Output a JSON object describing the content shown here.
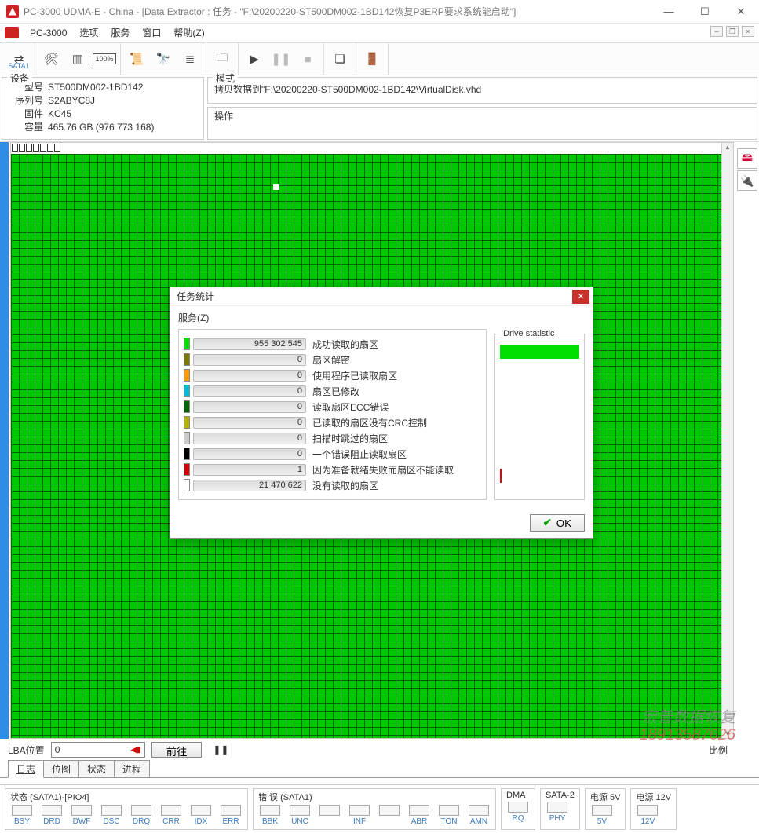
{
  "window": {
    "title": "PC-3000 UDMA-E - China - [Data Extractor : 任务 - \"F:\\20200220-ST500DM002-1BD142恢复P3ERP要求系统能启动\"]"
  },
  "menu": {
    "pc3000": "PC-3000",
    "options": "选项",
    "service": "服务",
    "windows": "窗口",
    "help": "帮助(Z)"
  },
  "toolbar": {
    "sata_label": "SATA1"
  },
  "device_panel": {
    "legend": "设备",
    "model_label": "型号",
    "model": "ST500DM002-1BD142",
    "serial_label": "序列号",
    "serial": "S2ABYC8J",
    "firmware_label": "固件",
    "firmware": "KC45",
    "capacity_label": "容量",
    "capacity": "465.76 GB (976 773 168)"
  },
  "mode_panel": {
    "legend": "模式",
    "text": "拷贝数据到\"F:\\20200220-ST500DM002-1BD142\\VirtualDisk.vhd"
  },
  "op_panel": {
    "legend": "操作"
  },
  "dialog": {
    "title": "任务统计",
    "menu": "服务(Z)",
    "drive_stat": "Drive statistic",
    "ok": "OK",
    "stats": [
      {
        "color": "#00e000",
        "value": "955 302 545",
        "label": "成功读取的扇区"
      },
      {
        "color": "#7a7a00",
        "value": "0",
        "label": "扇区解密"
      },
      {
        "color": "#ff9900",
        "value": "0",
        "label": "使用程序已读取扇区"
      },
      {
        "color": "#00bcd4",
        "value": "0",
        "label": "扇区已修改"
      },
      {
        "color": "#006400",
        "value": "0",
        "label": "读取扇区ECC错误"
      },
      {
        "color": "#b3b300",
        "value": "0",
        "label": "已读取的扇区没有CRC控制"
      },
      {
        "color": "#cccccc",
        "value": "0",
        "label": "扫描时跳过的扇区"
      },
      {
        "color": "#000000",
        "value": "0",
        "label": "一个错误阻止读取扇区"
      },
      {
        "color": "#d40000",
        "value": "1",
        "label": "因为准备就绪失败而扇区不能读取"
      },
      {
        "color": "#ffffff",
        "value": "21 470 622",
        "label": "没有读取的扇区"
      }
    ]
  },
  "lba": {
    "label": "LBA位置",
    "value": "0",
    "goto": "前往",
    "legend": "比例"
  },
  "tabs": {
    "log": "日志",
    "bitmap": "位图",
    "state": "状态",
    "process": "进程"
  },
  "status": {
    "g1_title": "状态 (SATA1)-[PIO4]",
    "g1": [
      "BSY",
      "DRD",
      "DWF",
      "DSC",
      "DRQ",
      "CRR",
      "IDX",
      "ERR"
    ],
    "g2_title": "错 误 (SATA1)",
    "g2": [
      "BBK",
      "UNC",
      "",
      "INF",
      "",
      "ABR",
      "TON",
      "AMN"
    ],
    "g3_title": "DMA",
    "g3": [
      "RQ"
    ],
    "g4_title": "SATA-2",
    "g4": [
      "PHY"
    ],
    "g5_title": "电源 5V",
    "g5": [
      "5V"
    ],
    "g6_title": "电源 12V",
    "g6": [
      "12V"
    ]
  },
  "watermark": {
    "line1": "宏普数据恢复",
    "line2": "18913587626"
  }
}
